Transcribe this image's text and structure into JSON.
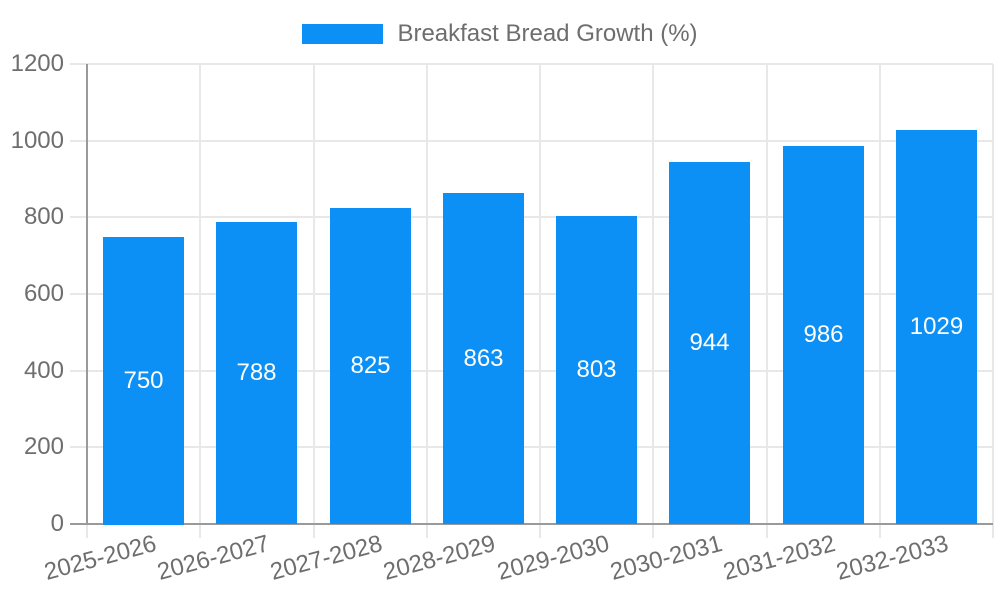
{
  "chart_data": {
    "type": "bar",
    "title": "Breakfast Bread Growth (%)",
    "legend_position": "top",
    "categories": [
      "2025-2026",
      "2026-2027",
      "2027-2028",
      "2028-2029",
      "2029-2030",
      "2030-2031",
      "2031-2032",
      "2032-2033"
    ],
    "values": [
      750,
      788,
      825,
      863,
      803,
      944,
      986,
      1029
    ],
    "xlabel": "",
    "ylabel": "",
    "ylim": [
      0,
      1200
    ],
    "yticks": [
      0,
      200,
      400,
      600,
      800,
      1000,
      1200
    ],
    "grid": true,
    "value_labels_position": "inside-center",
    "x_label_rotation_deg": -15
  },
  "colors": {
    "bar": "#0D90F5",
    "axis_text": "#6E6E6E",
    "grid_line": "#E8E8E8",
    "axis_line": "#9A9A9A",
    "value_label": "#FFFFFF",
    "background": "#FFFFFF"
  }
}
